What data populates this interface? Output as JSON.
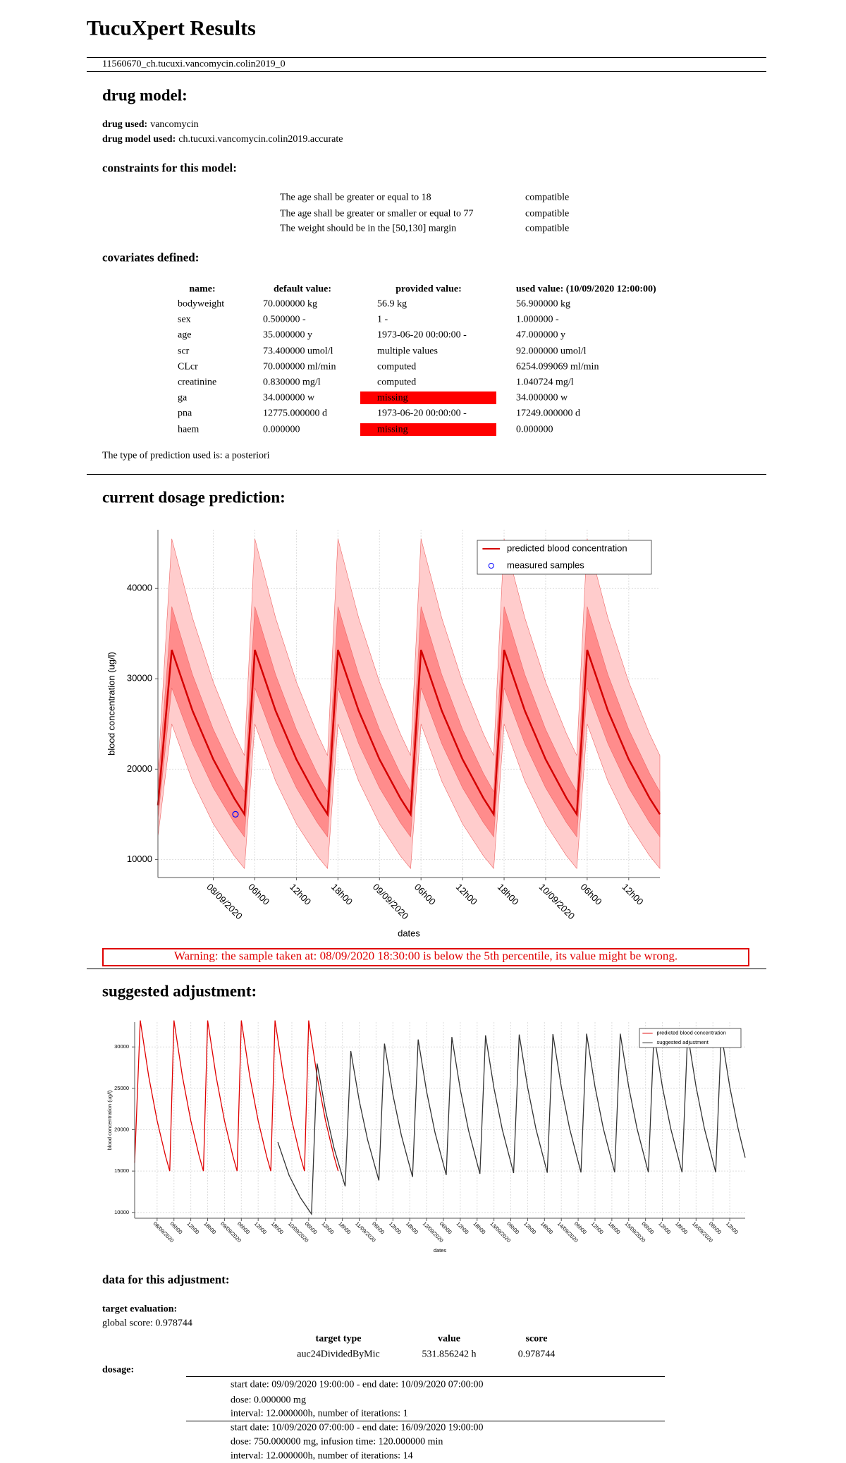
{
  "header": {
    "title": "TucuXpert Results",
    "id": "11560670_ch.tucuxi.vancomycin.colin2019_0"
  },
  "drug_model": {
    "heading": "drug model:",
    "drug_used_label": "drug used:",
    "drug_used": "vancomycin",
    "model_label": "drug model used:",
    "model": "ch.tucuxi.vancomycin.colin2019.accurate"
  },
  "constraints": {
    "heading": "constraints for this model:",
    "rows": [
      [
        "The age shall be greater or equal to 18",
        "compatible"
      ],
      [
        "The age shall be greater or smaller or equal to 77",
        "compatible"
      ],
      [
        "The weight should be in the [50,130] margin",
        "compatible"
      ]
    ]
  },
  "covariates": {
    "heading": "covariates defined:",
    "columns": [
      "name:",
      "default value:",
      "provided value:",
      "used value: (10/09/2020 12:00:00)"
    ],
    "rows": [
      [
        "bodyweight",
        "70.000000 kg",
        "56.9 kg",
        "56.900000 kg"
      ],
      [
        "sex",
        "0.500000 -",
        "1 -",
        "1.000000 -"
      ],
      [
        "age",
        "35.000000 y",
        "1973-06-20 00:00:00 -",
        "47.000000 y"
      ],
      [
        "scr",
        "73.400000 umol/l",
        "multiple values",
        "92.000000 umol/l"
      ],
      [
        "CLcr",
        "70.000000 ml/min",
        "computed",
        "6254.099069 ml/min"
      ],
      [
        "creatinine",
        "0.830000 mg/l",
        "computed",
        "1.040724 mg/l"
      ],
      [
        "ga",
        "34.000000 w",
        {
          "text": "missing",
          "highlight": "#ff0000"
        },
        "34.000000 w"
      ],
      [
        "pna",
        "12775.000000 d",
        "1973-06-20 00:00:00 -",
        "17249.000000 d"
      ],
      [
        "haem",
        "0.000000",
        {
          "text": "missing",
          "highlight": "#ff0000"
        },
        "0.000000"
      ]
    ]
  },
  "prediction_type": "The type of prediction used is: a posteriori",
  "prediction": {
    "heading": "current dosage prediction:"
  },
  "warning": "Warning: the sample taken at: 08/09/2020 18:30:00 is below the 5th percentile, its value might be wrong.",
  "adjustment": {
    "heading": "suggested adjustment:"
  },
  "chart_data": [
    {
      "type": "line",
      "xlabel": "dates",
      "ylabel": "blood concentration (ug/l)",
      "grid": true,
      "legend": "upper right",
      "xlim": [
        -8,
        64.5
      ],
      "ylim": [
        8000,
        46500
      ],
      "xticks": [
        {
          "value": 0,
          "label": "08/09/2020"
        },
        {
          "value": 6,
          "label": "06h00"
        },
        {
          "value": 12,
          "label": "12h00"
        },
        {
          "value": 18,
          "label": "18h00"
        },
        {
          "value": 24,
          "label": "09/09/2020"
        },
        {
          "value": 30,
          "label": "06h00"
        },
        {
          "value": 36,
          "label": "12h00"
        },
        {
          "value": 42,
          "label": "18h00"
        },
        {
          "value": 48,
          "label": "10/09/2020"
        },
        {
          "value": 54,
          "label": "06h00"
        },
        {
          "value": 60,
          "label": "12h00"
        }
      ],
      "yticks": [
        10000,
        20000,
        30000,
        40000
      ],
      "x": [
        -8,
        -6,
        -3,
        0,
        3,
        4.5,
        6,
        9,
        12,
        15,
        16.5,
        18,
        21,
        24,
        27,
        28.5,
        30,
        33,
        36,
        39,
        40.5,
        42,
        45,
        48,
        51,
        52.5,
        54,
        57,
        60,
        63,
        64.5
      ],
      "bands": [
        {
          "color": "#ffcccc",
          "lower": [
            12500,
            25000,
            18673,
            13945,
            10415,
            9000,
            25000,
            18673,
            13945,
            10415,
            9000,
            25000,
            18673,
            13945,
            10415,
            9000,
            25000,
            18673,
            13945,
            10415,
            9000,
            25000,
            18673,
            13945,
            10415,
            9000,
            25000,
            18673,
            13945,
            10415,
            9000
          ],
          "upper": [
            19500,
            45500,
            36728,
            29643,
            23928,
            21500,
            45500,
            36728,
            29643,
            23928,
            21500,
            45500,
            36728,
            29643,
            23928,
            21500,
            45500,
            36728,
            29643,
            23928,
            21500,
            45500,
            36728,
            29643,
            23928,
            21500,
            45500,
            36728,
            29643,
            23928,
            21500
          ]
        },
        {
          "color": "#ff8c8c",
          "lower": [
            14500,
            29000,
            22803,
            17931,
            14097,
            12500,
            29000,
            22803,
            17931,
            14097,
            12500,
            29000,
            22803,
            17931,
            14097,
            12500,
            29000,
            22803,
            17931,
            14097,
            12500,
            29000,
            22803,
            17931,
            14097,
            12500,
            29000,
            22803,
            17931,
            14097,
            12500
          ],
          "upper": [
            18000,
            38000,
            30449,
            24396,
            19551,
            17500,
            38000,
            30449,
            24396,
            19551,
            17500,
            38000,
            30449,
            24396,
            19551,
            17500,
            38000,
            30449,
            24396,
            19551,
            17500,
            38000,
            30449,
            24396,
            19551,
            17500,
            38000,
            30449,
            24396,
            19551,
            17500
          ]
        }
      ],
      "series": [
        {
          "name": "predicted blood concentration",
          "color": "#d40000",
          "values": [
            16000,
            33200,
            26457,
            21085,
            16803,
            15000,
            33200,
            26457,
            21085,
            16803,
            15000,
            33200,
            26457,
            21085,
            16803,
            15000,
            33200,
            26457,
            21085,
            16803,
            15000,
            33200,
            26457,
            21085,
            16803,
            15000,
            33200,
            26457,
            21085,
            16803,
            15000
          ]
        },
        {
          "name": "measured samples",
          "color": "#0000ff",
          "marker": "circle",
          "x": [
            3.2
          ],
          "values": [
            15000
          ]
        }
      ]
    },
    {
      "type": "line",
      "xlabel": "dates",
      "ylabel": "blood concentration (ug/l)",
      "grid": true,
      "legend": "upper right",
      "xlim": [
        -8,
        209.5
      ],
      "ylim": [
        9300,
        33000
      ],
      "xticks": [
        {
          "value": 0,
          "label": "08/09/2020"
        },
        {
          "value": 6,
          "label": "06h00"
        },
        {
          "value": 12,
          "label": "12h00"
        },
        {
          "value": 18,
          "label": "18h00"
        },
        {
          "value": 24,
          "label": "09/09/2020"
        },
        {
          "value": 30,
          "label": "06h00"
        },
        {
          "value": 36,
          "label": "12h00"
        },
        {
          "value": 42,
          "label": "18h00"
        },
        {
          "value": 48,
          "label": "10/09/2020"
        },
        {
          "value": 54,
          "label": "06h00"
        },
        {
          "value": 60,
          "label": "12h00"
        },
        {
          "value": 66,
          "label": "18h00"
        },
        {
          "value": 72,
          "label": "11/09/2020"
        },
        {
          "value": 78,
          "label": "06h00"
        },
        {
          "value": 84,
          "label": "12h00"
        },
        {
          "value": 90,
          "label": "18h00"
        },
        {
          "value": 96,
          "label": "12/09/2020"
        },
        {
          "value": 102,
          "label": "06h00"
        },
        {
          "value": 108,
          "label": "12h00"
        },
        {
          "value": 114,
          "label": "18h00"
        },
        {
          "value": 120,
          "label": "13/09/2020"
        },
        {
          "value": 126,
          "label": "06h00"
        },
        {
          "value": 132,
          "label": "12h00"
        },
        {
          "value": 138,
          "label": "18h00"
        },
        {
          "value": 144,
          "label": "14/09/2020"
        },
        {
          "value": 150,
          "label": "06h00"
        },
        {
          "value": 156,
          "label": "12h00"
        },
        {
          "value": 162,
          "label": "18h00"
        },
        {
          "value": 168,
          "label": "15/09/2020"
        },
        {
          "value": 174,
          "label": "06h00"
        },
        {
          "value": 180,
          "label": "12h00"
        },
        {
          "value": 186,
          "label": "18h00"
        },
        {
          "value": 192,
          "label": "16/09/2020"
        },
        {
          "value": 198,
          "label": "06h00"
        },
        {
          "value": 204,
          "label": "12h00"
        }
      ],
      "yticks": [
        10000,
        15000,
        20000,
        25000,
        30000
      ],
      "series": [
        {
          "name": "predicted blood concentration",
          "color": "#e00000",
          "x": [
            -8,
            -6,
            -3,
            0,
            3,
            4.5,
            6,
            9,
            12,
            15,
            16.5,
            18,
            21,
            24,
            27,
            28.5,
            30,
            33,
            36,
            39,
            40.5,
            42,
            45,
            48,
            51,
            52.5,
            54,
            57,
            60,
            63,
            64.5
          ],
          "values": [
            16000,
            33200,
            26457,
            21085,
            16803,
            15000,
            33200,
            26457,
            21085,
            16803,
            15000,
            33200,
            26457,
            21085,
            16803,
            15000,
            33200,
            26457,
            21085,
            16803,
            15000,
            33200,
            26457,
            21085,
            16803,
            15000,
            33200,
            26457,
            21085,
            16803,
            15000
          ]
        },
        {
          "name": "suggested adjustment",
          "color": "#333333",
          "x": [
            43,
            47,
            51,
            55,
            57,
            60,
            63,
            67,
            69,
            72,
            75,
            79,
            81,
            84,
            87,
            91,
            93,
            96,
            99,
            103,
            105,
            108,
            111,
            115,
            117,
            120,
            123,
            127,
            129,
            132,
            135,
            139,
            141,
            144,
            147,
            151,
            153,
            156,
            159,
            163,
            165,
            168,
            171,
            175,
            177,
            180,
            183,
            187,
            189,
            192,
            195,
            199,
            201,
            204,
            207,
            209.5
          ],
          "values": [
            18500,
            14500,
            11800,
            9800,
            28000,
            22316,
            17808,
            13160,
            29500,
            23512,
            18762,
            13865,
            30400,
            24229,
            19334,
            14288,
            30900,
            24627,
            19652,
            14523,
            31200,
            24866,
            19843,
            14664,
            31400,
            25026,
            19970,
            14758,
            31500,
            25106,
            20034,
            14805,
            31550,
            25145,
            20066,
            14829,
            31600,
            25185,
            20098,
            14852,
            31600,
            25185,
            20098,
            14852,
            31600,
            25185,
            20098,
            14852,
            31600,
            25185,
            20098,
            14852,
            31600,
            25185,
            20098,
            16622
          ]
        }
      ]
    }
  ],
  "adjustment_data": {
    "heading": "data for this adjustment:",
    "target_label": "target evaluation:",
    "global_score": "global score: 0.978744",
    "target_table": {
      "columns": [
        "target type",
        "value",
        "score"
      ],
      "rows": [
        [
          "auc24DividedByMic",
          "531.856242 h",
          "0.978744"
        ]
      ]
    },
    "dosage_label": "dosage:",
    "dosages": [
      [
        "start date: 09/09/2020 19:00:00 - end date: 10/09/2020 07:00:00",
        "dose: 0.000000 mg",
        "interval: 12.000000h, number of iterations: 1"
      ],
      [
        "start date: 10/09/2020 07:00:00 - end date: 16/09/2020 19:00:00",
        "dose: 750.000000 mg, infusion time: 120.000000 min",
        "interval: 12.000000h, number of iterations: 14"
      ]
    ]
  }
}
